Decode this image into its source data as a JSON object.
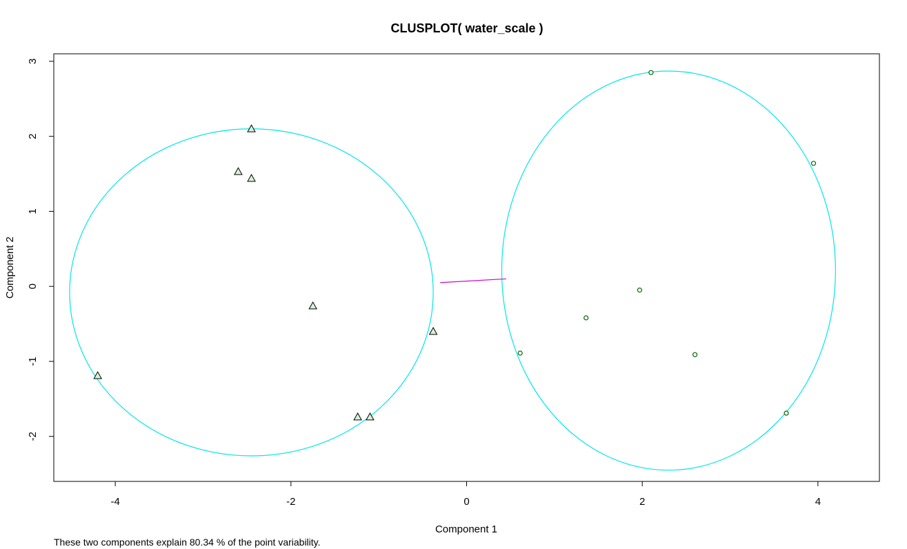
{
  "chart_data": {
    "type": "scatter",
    "title": "CLUSPLOT( water_scale )",
    "xlabel": "Component 1",
    "ylabel": "Component 2",
    "caption": "These two components explain 80.34 % of the point variability.",
    "xlim": [
      -4.7,
      4.7
    ],
    "ylim": [
      -2.6,
      3.1
    ],
    "xticks": [
      -4,
      -2,
      0,
      2,
      4
    ],
    "yticks": [
      -2,
      -1,
      0,
      1,
      2,
      3
    ],
    "xtick_labels": [
      "-4",
      "-2",
      "0",
      "2",
      "4"
    ],
    "ytick_labels": [
      "-2",
      "-1",
      "0",
      "1",
      "2",
      "3"
    ],
    "grid": false,
    "colors": {
      "ellipse": "#00e5ee",
      "connector": "#cc00cc",
      "points": "#006400",
      "triangle_fill": "#d8f2d8"
    },
    "clusters": [
      {
        "marker": "triangle",
        "ellipse": {
          "cx": -2.45,
          "cy": -0.08,
          "rx": 2.07,
          "ry": 2.18
        },
        "points": [
          {
            "x": -2.45,
            "y": 2.1
          },
          {
            "x": -2.6,
            "y": 1.53
          },
          {
            "x": -2.45,
            "y": 1.44
          },
          {
            "x": -1.75,
            "y": -0.26
          },
          {
            "x": -0.38,
            "y": -0.6
          },
          {
            "x": -4.2,
            "y": -1.19
          },
          {
            "x": -1.24,
            "y": -1.74
          },
          {
            "x": -1.1,
            "y": -1.74
          }
        ]
      },
      {
        "marker": "circle",
        "ellipse": {
          "cx": 2.3,
          "cy": 0.21,
          "rx": 1.9,
          "ry": 2.66
        },
        "points": [
          {
            "x": 2.1,
            "y": 2.85
          },
          {
            "x": 3.95,
            "y": 1.64
          },
          {
            "x": 1.97,
            "y": -0.05
          },
          {
            "x": 1.36,
            "y": -0.42
          },
          {
            "x": 0.61,
            "y": -0.89
          },
          {
            "x": 2.6,
            "y": -0.91
          },
          {
            "x": 3.64,
            "y": -1.69
          }
        ]
      }
    ],
    "connector": {
      "x1": -0.3,
      "y1": 0.05,
      "x2": 0.45,
      "y2": 0.1
    }
  }
}
